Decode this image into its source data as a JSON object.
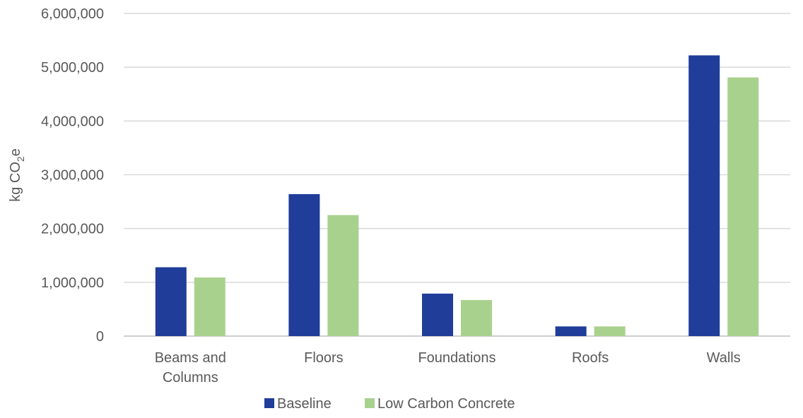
{
  "chart_data": {
    "type": "bar",
    "categories": [
      [
        "Beams and",
        "Columns"
      ],
      [
        "Floors"
      ],
      [
        "Foundations"
      ],
      [
        "Roofs"
      ],
      [
        "Walls"
      ]
    ],
    "series": [
      {
        "name": "Baseline",
        "color": "#1f3d99",
        "values": [
          1280000,
          2640000,
          790000,
          180000,
          5220000
        ]
      },
      {
        "name": "Low Carbon Concrete",
        "color": "#a9d18e",
        "values": [
          1090000,
          2250000,
          670000,
          180000,
          4810000
        ]
      }
    ],
    "ylabel_main": "kg CO",
    "ylabel_sub": "2",
    "ylabel_tail": "e",
    "ylim": [
      0,
      6000000
    ],
    "yticks": [
      0,
      1000000,
      2000000,
      3000000,
      4000000,
      5000000,
      6000000
    ],
    "ytick_labels": [
      "0",
      "1,000,000",
      "2,000,000",
      "3,000,000",
      "4,000,000",
      "5,000,000",
      "6,000,000"
    ],
    "grid": true,
    "legend_position": "bottom-center"
  }
}
